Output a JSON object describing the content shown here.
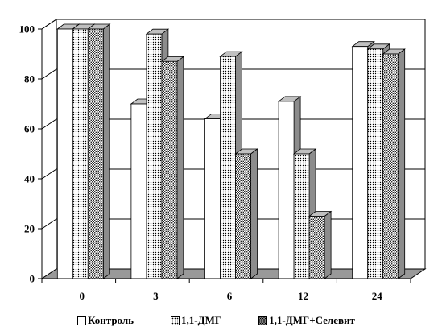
{
  "chart_data": {
    "type": "bar",
    "title": "",
    "xlabel": "",
    "ylabel": "",
    "categories": [
      "0",
      "3",
      "6",
      "12",
      "24"
    ],
    "series": [
      {
        "name": "Контроль",
        "values": [
          100,
          70,
          64,
          71,
          93
        ]
      },
      {
        "name": "1,1-ДМГ",
        "values": [
          100,
          98,
          89,
          50,
          92
        ]
      },
      {
        "name": "1,1-ДМГ+Селевит",
        "values": [
          100,
          87,
          50,
          25,
          90
        ]
      }
    ],
    "ylim": [
      0,
      100
    ],
    "yticks": [
      "0",
      "20",
      "40",
      "60",
      "80",
      "100"
    ],
    "grid": true,
    "legend_position": "bottom",
    "style": "3d-bars",
    "colors": {
      "floor": "#999999",
      "bar_side": "#8c8c8c",
      "bar_top": "#c0c0c0",
      "outline": "#000000"
    }
  }
}
